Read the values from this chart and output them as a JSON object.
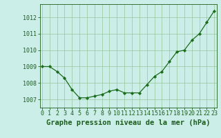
{
  "x": [
    0,
    1,
    2,
    3,
    4,
    5,
    6,
    7,
    8,
    9,
    10,
    11,
    12,
    13,
    14,
    15,
    16,
    17,
    18,
    19,
    20,
    21,
    22,
    23
  ],
  "y": [
    1009.0,
    1009.0,
    1008.7,
    1008.3,
    1007.6,
    1007.1,
    1007.1,
    1007.2,
    1007.3,
    1007.5,
    1007.6,
    1007.4,
    1007.4,
    1007.4,
    1007.9,
    1008.4,
    1008.7,
    1009.3,
    1009.9,
    1010.0,
    1010.6,
    1011.0,
    1011.7,
    1012.4
  ],
  "line_color": "#1a6b1a",
  "marker_color": "#1a6b1a",
  "bg_color": "#cceee8",
  "grid_color": "#88bb88",
  "title": "Graphe pression niveau de la mer (hPa)",
  "ylim": [
    1006.5,
    1012.8
  ],
  "xlim": [
    -0.3,
    23.3
  ],
  "yticks": [
    1007,
    1008,
    1009,
    1010,
    1011,
    1012
  ],
  "xticks": [
    0,
    1,
    2,
    3,
    4,
    5,
    6,
    7,
    8,
    9,
    10,
    11,
    12,
    13,
    14,
    15,
    16,
    17,
    18,
    19,
    20,
    21,
    22,
    23
  ],
  "title_fontsize": 7.5,
  "tick_fontsize": 6,
  "title_color": "#1a5c1a",
  "axis_color": "#1a5c1a"
}
